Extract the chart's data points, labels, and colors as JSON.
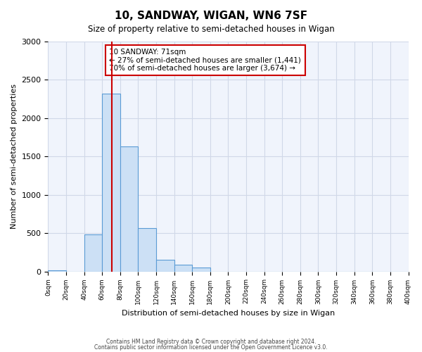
{
  "title": "10, SANDWAY, WIGAN, WN6 7SF",
  "subtitle": "Size of property relative to semi-detached houses in Wigan",
  "xlabel": "Distribution of semi-detached houses by size in Wigan",
  "ylabel": "Number of semi-detached properties",
  "bin_edges": [
    0,
    20,
    40,
    60,
    80,
    100,
    120,
    140,
    160,
    180,
    200,
    220,
    240,
    260,
    280,
    300,
    320,
    340,
    360,
    380,
    400
  ],
  "bin_counts": [
    15,
    0,
    480,
    2320,
    1630,
    570,
    150,
    85,
    50,
    0,
    0,
    0,
    0,
    0,
    0,
    0,
    0,
    0,
    0,
    0
  ],
  "bar_facecolor": "#cce0f5",
  "bar_edgecolor": "#5b9bd5",
  "property_size": 71,
  "vline_color": "#cc0000",
  "annotation_text": "10 SANDWAY: 71sqm\n← 27% of semi-detached houses are smaller (1,441)\n70% of semi-detached houses are larger (3,674) →",
  "annotation_boxcolor": "white",
  "annotation_boxedge": "#cc0000",
  "ylim": [
    0,
    3000
  ],
  "yticks": [
    0,
    500,
    1000,
    1500,
    2000,
    2500,
    3000
  ],
  "xtick_labels": [
    "0sqm",
    "20sqm",
    "40sqm",
    "60sqm",
    "80sqm",
    "100sqm",
    "120sqm",
    "140sqm",
    "160sqm",
    "180sqm",
    "200sqm",
    "220sqm",
    "240sqm",
    "260sqm",
    "280sqm",
    "300sqm",
    "320sqm",
    "340sqm",
    "360sqm",
    "380sqm",
    "400sqm"
  ],
  "grid_color": "#d0d8e8",
  "bg_color": "#f0f4fc",
  "footer_line1": "Contains HM Land Registry data © Crown copyright and database right 2024.",
  "footer_line2": "Contains public sector information licensed under the Open Government Licence v3.0."
}
